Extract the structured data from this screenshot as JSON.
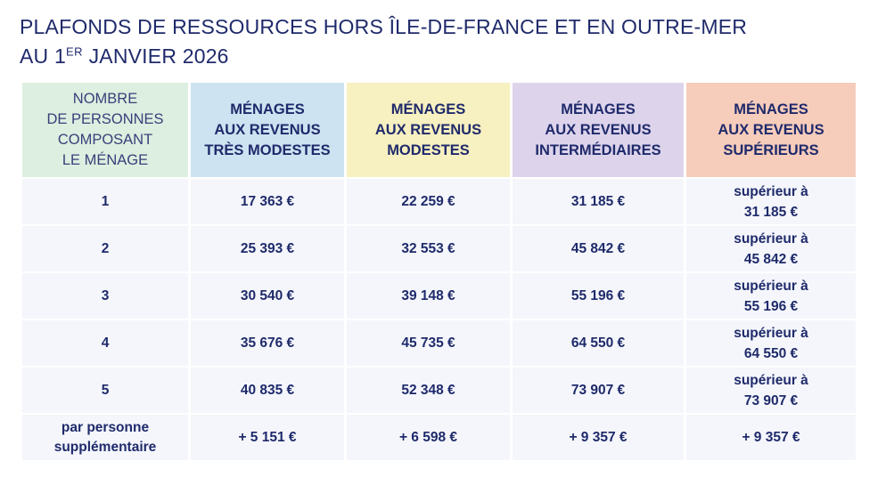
{
  "title": {
    "line1": "PLAFONDS DE RESSOURCES HORS ÎLE-DE-FRANCE ET EN OUTRE-MER",
    "line2_pre": "AU 1",
    "line2_sup": "ER",
    "line2_post": " JANVIER 2026"
  },
  "headers": {
    "persons": [
      "NOMBRE",
      "DE PERSONNES",
      "COMPOSANT",
      "LE MÉNAGE"
    ],
    "very_modest": [
      "MÉNAGES",
      "AUX REVENUS",
      "TRÈS MODESTES"
    ],
    "modest": [
      "MÉNAGES",
      "AUX REVENUS",
      "MODESTES"
    ],
    "intermediate": [
      "MÉNAGES",
      "AUX REVENUS",
      "INTERMÉDIAIRES"
    ],
    "superior": [
      "MÉNAGES",
      "AUX REVENUS",
      "SUPÉRIEURS"
    ]
  },
  "rows": [
    {
      "persons": [
        "1"
      ],
      "very_modest": "17 363 €",
      "modest": "22 259 €",
      "intermediate": "31 185 €",
      "superior": [
        "supérieur à",
        "31 185 €"
      ]
    },
    {
      "persons": [
        "2"
      ],
      "very_modest": "25 393 €",
      "modest": "32 553 €",
      "intermediate": "45 842 €",
      "superior": [
        "supérieur à",
        "45 842 €"
      ]
    },
    {
      "persons": [
        "3"
      ],
      "very_modest": "30 540 €",
      "modest": "39 148 €",
      "intermediate": "55 196 €",
      "superior": [
        "supérieur à",
        "55 196 €"
      ]
    },
    {
      "persons": [
        "4"
      ],
      "very_modest": "35 676 €",
      "modest": "45 735 €",
      "intermediate": "64 550 €",
      "superior": [
        "supérieur à",
        "64 550 €"
      ]
    },
    {
      "persons": [
        "5"
      ],
      "very_modest": "40 835 €",
      "modest": "52 348 €",
      "intermediate": "73 907 €",
      "superior": [
        "supérieur à",
        "73 907 €"
      ]
    },
    {
      "persons": [
        "par personne",
        "supplémentaire"
      ],
      "very_modest": "+ 5 151 €",
      "modest": "+ 6 598 €",
      "intermediate": "+ 9 357 €",
      "superior": [
        "+ 9 357 €"
      ]
    }
  ],
  "colors": {
    "persons_header": "#dcefe0",
    "very_modest_header": "#cde3f1",
    "modest_header": "#f7f0c0",
    "intermediate_header": "#ddd4ec",
    "superior_header": "#f6ccbb",
    "body_cell": "#f4f6fb",
    "text": "#1f2a6b"
  }
}
